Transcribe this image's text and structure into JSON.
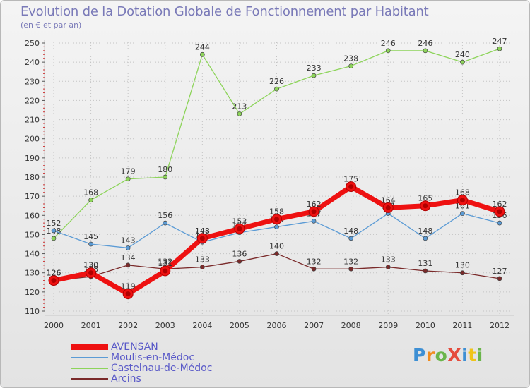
{
  "header": {
    "title": "Evolution de la Dotation Globale de Fonctionnement par Habitant",
    "subtitle": "(en € et par an)"
  },
  "logo": {
    "text": "ProXiti",
    "colors": [
      "#3d8fd4",
      "#f08b1d",
      "#6ab54a",
      "#e54b3c",
      "#3d8fd4",
      "#f0c419",
      "#6ab54a"
    ]
  },
  "chart_data": {
    "type": "line",
    "title": "Evolution de la Dotation Globale de Fonctionnement par Habitant",
    "subtitle": "(en € et par an)",
    "xlabel": "",
    "ylabel": "",
    "ylim": [
      110,
      250
    ],
    "yticks": [
      110,
      120,
      130,
      140,
      150,
      160,
      170,
      180,
      190,
      200,
      210,
      220,
      230,
      240,
      250
    ],
    "categories": [
      "2000",
      "2001",
      "2002",
      "2003",
      "2004",
      "2005",
      "2006",
      "2007",
      "2008",
      "2009",
      "2010",
      "2011",
      "2012"
    ],
    "grid": true,
    "legend_position": "bottom-left",
    "series": [
      {
        "name": "Arcins",
        "color": "#7a2a2a",
        "values": [
          126,
          128,
          134,
          132,
          133,
          136,
          140,
          132,
          132,
          133,
          131,
          130,
          127
        ],
        "labels": [
          "126",
          "128",
          "134",
          "132",
          "133",
          "136",
          "140",
          "132",
          "132",
          "133",
          "131",
          "130",
          "127"
        ]
      },
      {
        "name": "Castelnau-de-Médoc",
        "color": "#8dd45a",
        "values": [
          148,
          168,
          179,
          180,
          244,
          213,
          226,
          233,
          238,
          246,
          246,
          240,
          247
        ],
        "labels": [
          "148",
          "168",
          "179",
          "180",
          "244",
          "213",
          "226",
          "233",
          "238",
          "246",
          "246",
          "240",
          "247"
        ]
      },
      {
        "name": "Moulis-en-Médoc",
        "color": "#5b9bd5",
        "values": [
          152,
          145,
          143,
          156,
          146,
          151,
          154,
          157,
          148,
          161,
          148,
          161,
          156
        ],
        "labels": [
          "152",
          "145",
          "143",
          "156",
          "146",
          "151",
          "154",
          "157",
          "148",
          "161",
          "148",
          "161",
          "156"
        ]
      },
      {
        "name": "AVENSAN",
        "color": "#ee1111",
        "values": [
          126,
          130,
          119,
          131,
          148,
          153,
          158,
          162,
          175,
          164,
          165,
          168,
          162
        ],
        "labels": [
          "126",
          "130",
          "119",
          "131",
          "148",
          "153",
          "158",
          "162",
          "175",
          "164",
          "165",
          "168",
          "162"
        ]
      }
    ]
  },
  "legend": [
    {
      "name": "AVENSAN",
      "color": "#ee1111",
      "thick": true
    },
    {
      "name": "Moulis-en-Médoc",
      "color": "#5b9bd5",
      "thick": false
    },
    {
      "name": "Castelnau-de-Médoc",
      "color": "#8dd45a",
      "thick": false
    },
    {
      "name": "Arcins",
      "color": "#7a2a2a",
      "thick": false
    }
  ]
}
